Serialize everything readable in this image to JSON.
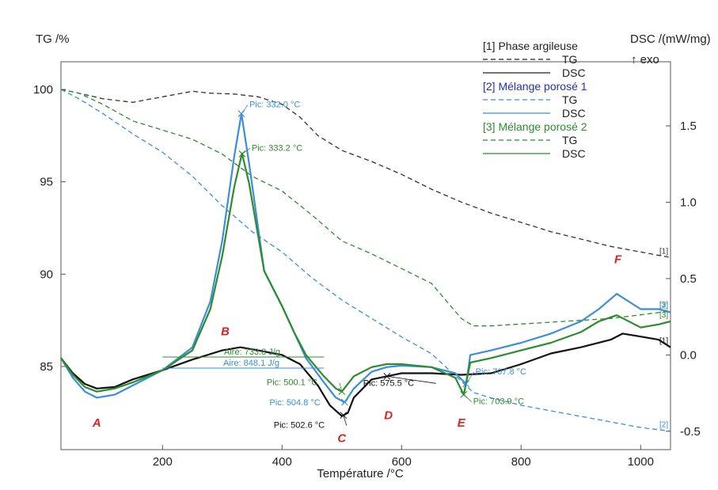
{
  "chart_data": {
    "type": "line",
    "x_axis": {
      "label": "Température /°C",
      "range": [
        30,
        1050
      ],
      "ticks": [
        200,
        400,
        600,
        800,
        1000
      ]
    },
    "y_left": {
      "label": "TG /%",
      "range": [
        80.5,
        101.5
      ],
      "ticks": [
        85,
        90,
        95,
        100
      ]
    },
    "y_right": {
      "label": "DSC /(mW/mg)",
      "sublabel": "↑ exo",
      "range": [
        -0.62,
        1.92
      ],
      "ticks": [
        -0.5,
        0.0,
        0.5,
        1.0,
        1.5
      ]
    },
    "legend": {
      "placement": "top-right",
      "groups": [
        {
          "title": "[1] Phase argileuse",
          "tg": "TG",
          "dsc": "DSC",
          "color": "#222222",
          "title_color": "#222222"
        },
        {
          "title": "[2] Mélange porosé 1",
          "tg": "TG",
          "dsc": "DSC",
          "color": "#3a8fd8",
          "title_color": "#2030c0"
        },
        {
          "title": "[3] Mélange porosé 2",
          "tg": "TG",
          "dsc": "DSC",
          "color": "#2e8b2e",
          "title_color": "#2e8b2e"
        }
      ]
    },
    "series": [
      {
        "id": "tg1",
        "legend_group": 0,
        "axis": "left",
        "style": "dashed",
        "color": "#333333",
        "end_label": "[1]",
        "x": [
          30,
          60,
          100,
          150,
          200,
          250,
          280,
          320,
          360,
          400,
          430,
          460,
          500,
          550,
          600,
          650,
          700,
          750,
          800,
          850,
          900,
          950,
          1000,
          1050
        ],
        "y": [
          100,
          99.8,
          99.5,
          99.3,
          99.6,
          99.9,
          99.8,
          99.75,
          99.6,
          99.2,
          98.5,
          97.5,
          96.7,
          96.1,
          95.4,
          94.6,
          93.9,
          93.3,
          92.8,
          92.3,
          91.9,
          91.5,
          91.2,
          90.9
        ]
      },
      {
        "id": "tg2",
        "legend_group": 1,
        "axis": "left",
        "style": "dashed",
        "color": "#3a8fd8",
        "end_label": "[2]",
        "x": [
          30,
          60,
          100,
          150,
          200,
          250,
          300,
          350,
          400,
          450,
          500,
          550,
          600,
          650,
          700,
          720,
          750,
          800,
          850,
          900,
          950,
          1000,
          1050
        ],
        "y": [
          100,
          99.5,
          98.7,
          97.6,
          96.6,
          95.3,
          93.7,
          92.3,
          91.2,
          89.8,
          88.6,
          87.6,
          86.6,
          85.7,
          84.2,
          83.6,
          83.3,
          82.9,
          82.6,
          82.3,
          82.0,
          81.7,
          81.5
        ]
      },
      {
        "id": "tg3",
        "legend_group": 2,
        "axis": "left",
        "style": "dashed",
        "color": "#2e8b2e",
        "end_label": "[3]",
        "x": [
          30,
          60,
          100,
          150,
          200,
          250,
          300,
          350,
          400,
          450,
          500,
          550,
          600,
          650,
          700,
          720,
          750,
          800,
          850,
          900,
          950,
          1000,
          1050
        ],
        "y": [
          100,
          99.8,
          99.2,
          98.3,
          97.8,
          97.3,
          96.5,
          95.3,
          94.5,
          93.2,
          91.8,
          91.1,
          90.3,
          89.5,
          87.6,
          87.2,
          87.2,
          87.3,
          87.4,
          87.5,
          87.6,
          87.8,
          88.0
        ]
      },
      {
        "id": "dsc1",
        "legend_group": 0,
        "axis": "right",
        "style": "solid",
        "color": "#111111",
        "end_label": "[1]",
        "x": [
          30,
          50,
          70,
          90,
          120,
          150,
          200,
          250,
          300,
          330,
          360,
          400,
          430,
          460,
          480,
          500,
          510,
          520,
          550,
          575,
          600,
          650,
          700,
          750,
          800,
          850,
          900,
          950,
          970,
          1000,
          1030,
          1050
        ],
        "y": [
          -0.02,
          -0.12,
          -0.19,
          -0.22,
          -0.21,
          -0.16,
          -0.1,
          -0.03,
          0.03,
          0.05,
          0.03,
          0.0,
          -0.06,
          -0.2,
          -0.33,
          -0.4,
          -0.38,
          -0.28,
          -0.16,
          -0.14,
          -0.12,
          -0.12,
          -0.13,
          -0.12,
          -0.06,
          0.01,
          0.05,
          0.1,
          0.14,
          0.12,
          0.1,
          0.05
        ]
      },
      {
        "id": "dsc2",
        "legend_group": 1,
        "axis": "right",
        "style": "solid",
        "color": "#3a8fd8",
        "end_label": "[2]",
        "x": [
          30,
          50,
          70,
          90,
          120,
          150,
          200,
          250,
          280,
          300,
          320,
          332,
          345,
          370,
          400,
          420,
          440,
          470,
          490,
          505,
          520,
          550,
          575,
          600,
          650,
          690,
          708,
          715,
          750,
          800,
          850,
          900,
          930,
          960,
          1000,
          1030,
          1050
        ],
        "y": [
          -0.02,
          -0.15,
          -0.24,
          -0.28,
          -0.26,
          -0.2,
          -0.1,
          0.05,
          0.35,
          0.75,
          1.3,
          1.58,
          1.25,
          0.55,
          0.32,
          0.15,
          -0.02,
          -0.18,
          -0.28,
          -0.31,
          -0.22,
          -0.11,
          -0.08,
          -0.07,
          -0.08,
          -0.12,
          -0.19,
          0.0,
          0.03,
          0.08,
          0.14,
          0.22,
          0.3,
          0.4,
          0.3,
          0.3,
          0.28
        ]
      },
      {
        "id": "dsc3",
        "legend_group": 2,
        "axis": "right",
        "style": "solid",
        "color": "#2e8b2e",
        "end_label": "[3]",
        "x": [
          30,
          50,
          70,
          90,
          120,
          150,
          200,
          250,
          280,
          300,
          320,
          333,
          345,
          370,
          400,
          420,
          440,
          470,
          490,
          500,
          520,
          550,
          575,
          600,
          650,
          690,
          704,
          715,
          750,
          800,
          850,
          900,
          930,
          960,
          1000,
          1030,
          1050
        ],
        "y": [
          -0.02,
          -0.13,
          -0.21,
          -0.24,
          -0.22,
          -0.18,
          -0.1,
          0.03,
          0.3,
          0.65,
          1.1,
          1.32,
          1.12,
          0.55,
          0.32,
          0.15,
          0.0,
          -0.14,
          -0.22,
          -0.24,
          -0.14,
          -0.08,
          -0.06,
          -0.06,
          -0.08,
          -0.15,
          -0.26,
          -0.05,
          -0.02,
          0.03,
          0.08,
          0.15,
          0.22,
          0.26,
          0.18,
          0.2,
          0.22
        ]
      }
    ],
    "peaks": [
      {
        "label": "Pic: 332.0 °C",
        "color": "#3a8fd8",
        "series": "dsc2",
        "x": 332.0
      },
      {
        "label": "Pic: 333.2 °C",
        "color": "#2e8b2e",
        "series": "dsc3",
        "x": 333.2
      },
      {
        "label": "Pic: 500.1 °C",
        "color": "#2e8b2e",
        "series": "dsc3",
        "x": 500.1
      },
      {
        "label": "Pic: 504.8 °C",
        "color": "#3a8fd8",
        "series": "dsc2",
        "x": 504.8
      },
      {
        "label": "Pic: 502.6 °C",
        "color": "#111111",
        "series": "dsc1",
        "x": 502.6
      },
      {
        "label": "Pic: 575.5 °C",
        "color": "#111111",
        "series": "dsc1",
        "x": 575.5
      },
      {
        "label": "Pic: 707.8 °C",
        "color": "#3a8fd8",
        "series": "dsc2",
        "x": 707.8
      },
      {
        "label": "Pic: 703.9 °C",
        "color": "#2e8b2e",
        "series": "dsc3",
        "x": 703.9
      }
    ],
    "areas": [
      {
        "label": "Aire: 733.8 J/g",
        "color": "#2e8b2e",
        "x_start": 200,
        "x_end": 470
      },
      {
        "label": "Aire: 848.1 J/g",
        "color": "#3a8fd8",
        "x_start": 200,
        "x_end": 470
      }
    ],
    "region_labels": [
      {
        "text": "A",
        "x": 90,
        "dsc": -0.47
      },
      {
        "text": "B",
        "x": 305,
        "dsc": 0.13
      },
      {
        "text": "C",
        "x": 500,
        "dsc": -0.57
      },
      {
        "text": "D",
        "x": 578,
        "dsc": -0.42
      },
      {
        "text": "E",
        "x": 700,
        "dsc": -0.47
      },
      {
        "text": "F",
        "x": 962,
        "dsc": 0.6
      }
    ]
  }
}
